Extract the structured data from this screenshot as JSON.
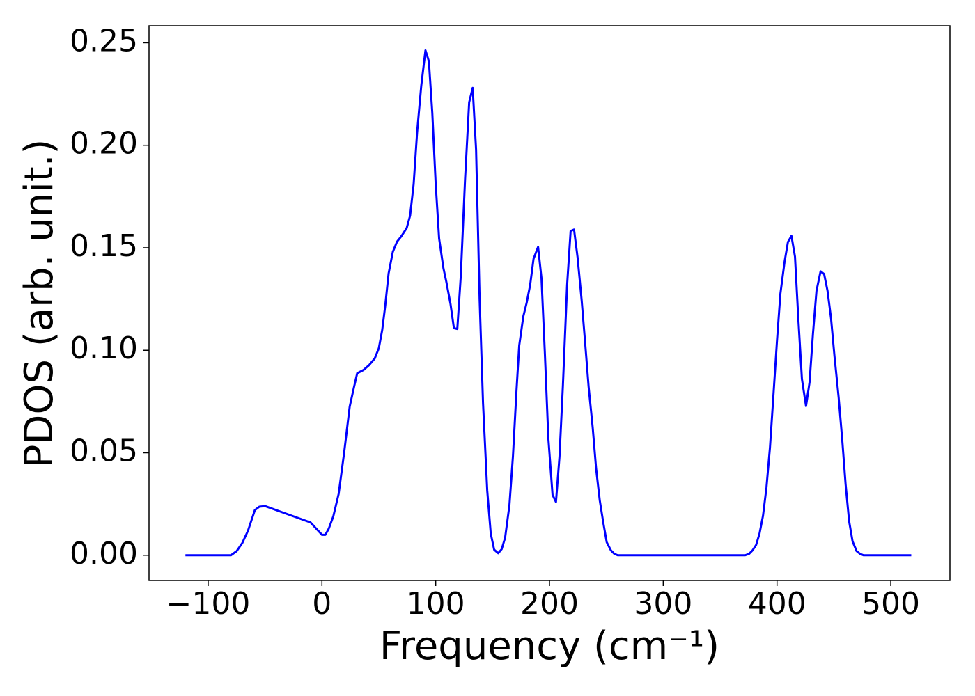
{
  "chart_data": {
    "type": "line",
    "xlabel": "Frequency (cm⁻¹)",
    "ylabel": "PDOS (arb. unit.)",
    "color": "#0000ff",
    "xlim": [
      -152,
      552
    ],
    "ylim": [
      -0.0123,
      0.2583
    ],
    "xticks": [
      {
        "value": -100,
        "label": "−100"
      },
      0,
      100,
      200,
      300,
      400,
      500
    ],
    "yticks": [
      {
        "value": 0,
        "label": "0.00"
      },
      {
        "value": 0.05,
        "label": "0.05"
      },
      {
        "value": 0.1,
        "label": "0.10"
      },
      {
        "value": 0.15,
        "label": "0.15"
      },
      {
        "value": 0.2,
        "label": "0.20"
      },
      {
        "value": 0.25,
        "label": "0.25"
      }
    ],
    "grid": false,
    "x": [
      -120,
      -80,
      -75,
      -70,
      -65,
      -59,
      -55,
      -50,
      -40,
      -30,
      -20,
      -10,
      -5,
      0,
      3,
      6,
      10,
      14.7,
      19.5,
      24.4,
      28,
      31,
      36.6,
      41.5,
      46.4,
      50,
      53,
      55.6,
      58.6,
      62.3,
      66,
      69.6,
      74.5,
      77.5,
      80.6,
      83.6,
      87.3,
      91,
      94,
      97,
      100,
      103,
      106.8,
      109.3,
      113,
      116,
      119,
      122,
      125.8,
      129.4,
      132.5,
      135.5,
      138.6,
      141.6,
      145.3,
      148.4,
      151.4,
      155,
      158,
      161,
      164.8,
      167.9,
      171,
      173.4,
      177,
      180,
      183,
      186,
      190,
      193,
      196,
      199,
      202.7,
      205.7,
      208.8,
      211.8,
      215.5,
      218.6,
      221.6,
      224.7,
      228.3,
      231.4,
      234.4,
      238,
      241,
      244.2,
      247.3,
      250.3,
      254,
      257,
      260,
      372,
      375.5,
      378.5,
      381.6,
      384.6,
      387.7,
      390.7,
      393.8,
      396.8,
      400,
      403,
      406.6,
      409.6,
      412.7,
      415.8,
      418.8,
      421.9,
      425.5,
      428.6,
      431.6,
      434.7,
      438.3,
      441.4,
      444.4,
      447.5,
      450.5,
      454.2,
      457.3,
      460.3,
      463.4,
      466.4,
      470,
      473,
      476,
      518
    ],
    "values": [
      0,
      0,
      0.002,
      0.006,
      0.012,
      0.022,
      0.0237,
      0.024,
      0.022,
      0.02,
      0.018,
      0.016,
      0.013,
      0.01,
      0.01,
      0.013,
      0.019,
      0.03,
      0.05,
      0.0725,
      0.0816,
      0.0888,
      0.0904,
      0.0928,
      0.096,
      0.101,
      0.11,
      0.1216,
      0.1375,
      0.148,
      0.153,
      0.1555,
      0.1596,
      0.1657,
      0.181,
      0.206,
      0.229,
      0.2463,
      0.241,
      0.2158,
      0.181,
      0.1545,
      0.14,
      0.1335,
      0.1226,
      0.1108,
      0.1104,
      0.1358,
      0.1833,
      0.2209,
      0.228,
      0.1978,
      0.125,
      0.0742,
      0.0315,
      0.0105,
      0.0027,
      0.001,
      0.003,
      0.0085,
      0.0244,
      0.0484,
      0.0803,
      0.1023,
      0.1165,
      0.1233,
      0.1318,
      0.1446,
      0.1504,
      0.135,
      0.0979,
      0.0572,
      0.0295,
      0.026,
      0.048,
      0.0827,
      0.1318,
      0.1582,
      0.1589,
      0.1453,
      0.1243,
      0.1033,
      0.0823,
      0.0623,
      0.0423,
      0.0268,
      0.0159,
      0.0064,
      0.0024,
      0.0007,
      0,
      0,
      0.0007,
      0.0024,
      0.005,
      0.0105,
      0.0193,
      0.0329,
      0.0525,
      0.0776,
      0.1047,
      0.1277,
      0.143,
      0.1528,
      0.1558,
      0.1457,
      0.1148,
      0.086,
      0.0728,
      0.0843,
      0.108,
      0.129,
      0.1385,
      0.1372,
      0.129,
      0.1155,
      0.0972,
      0.0769,
      0.0566,
      0.0346,
      0.0166,
      0.0068,
      0.002,
      0.0007,
      0,
      0
    ]
  }
}
